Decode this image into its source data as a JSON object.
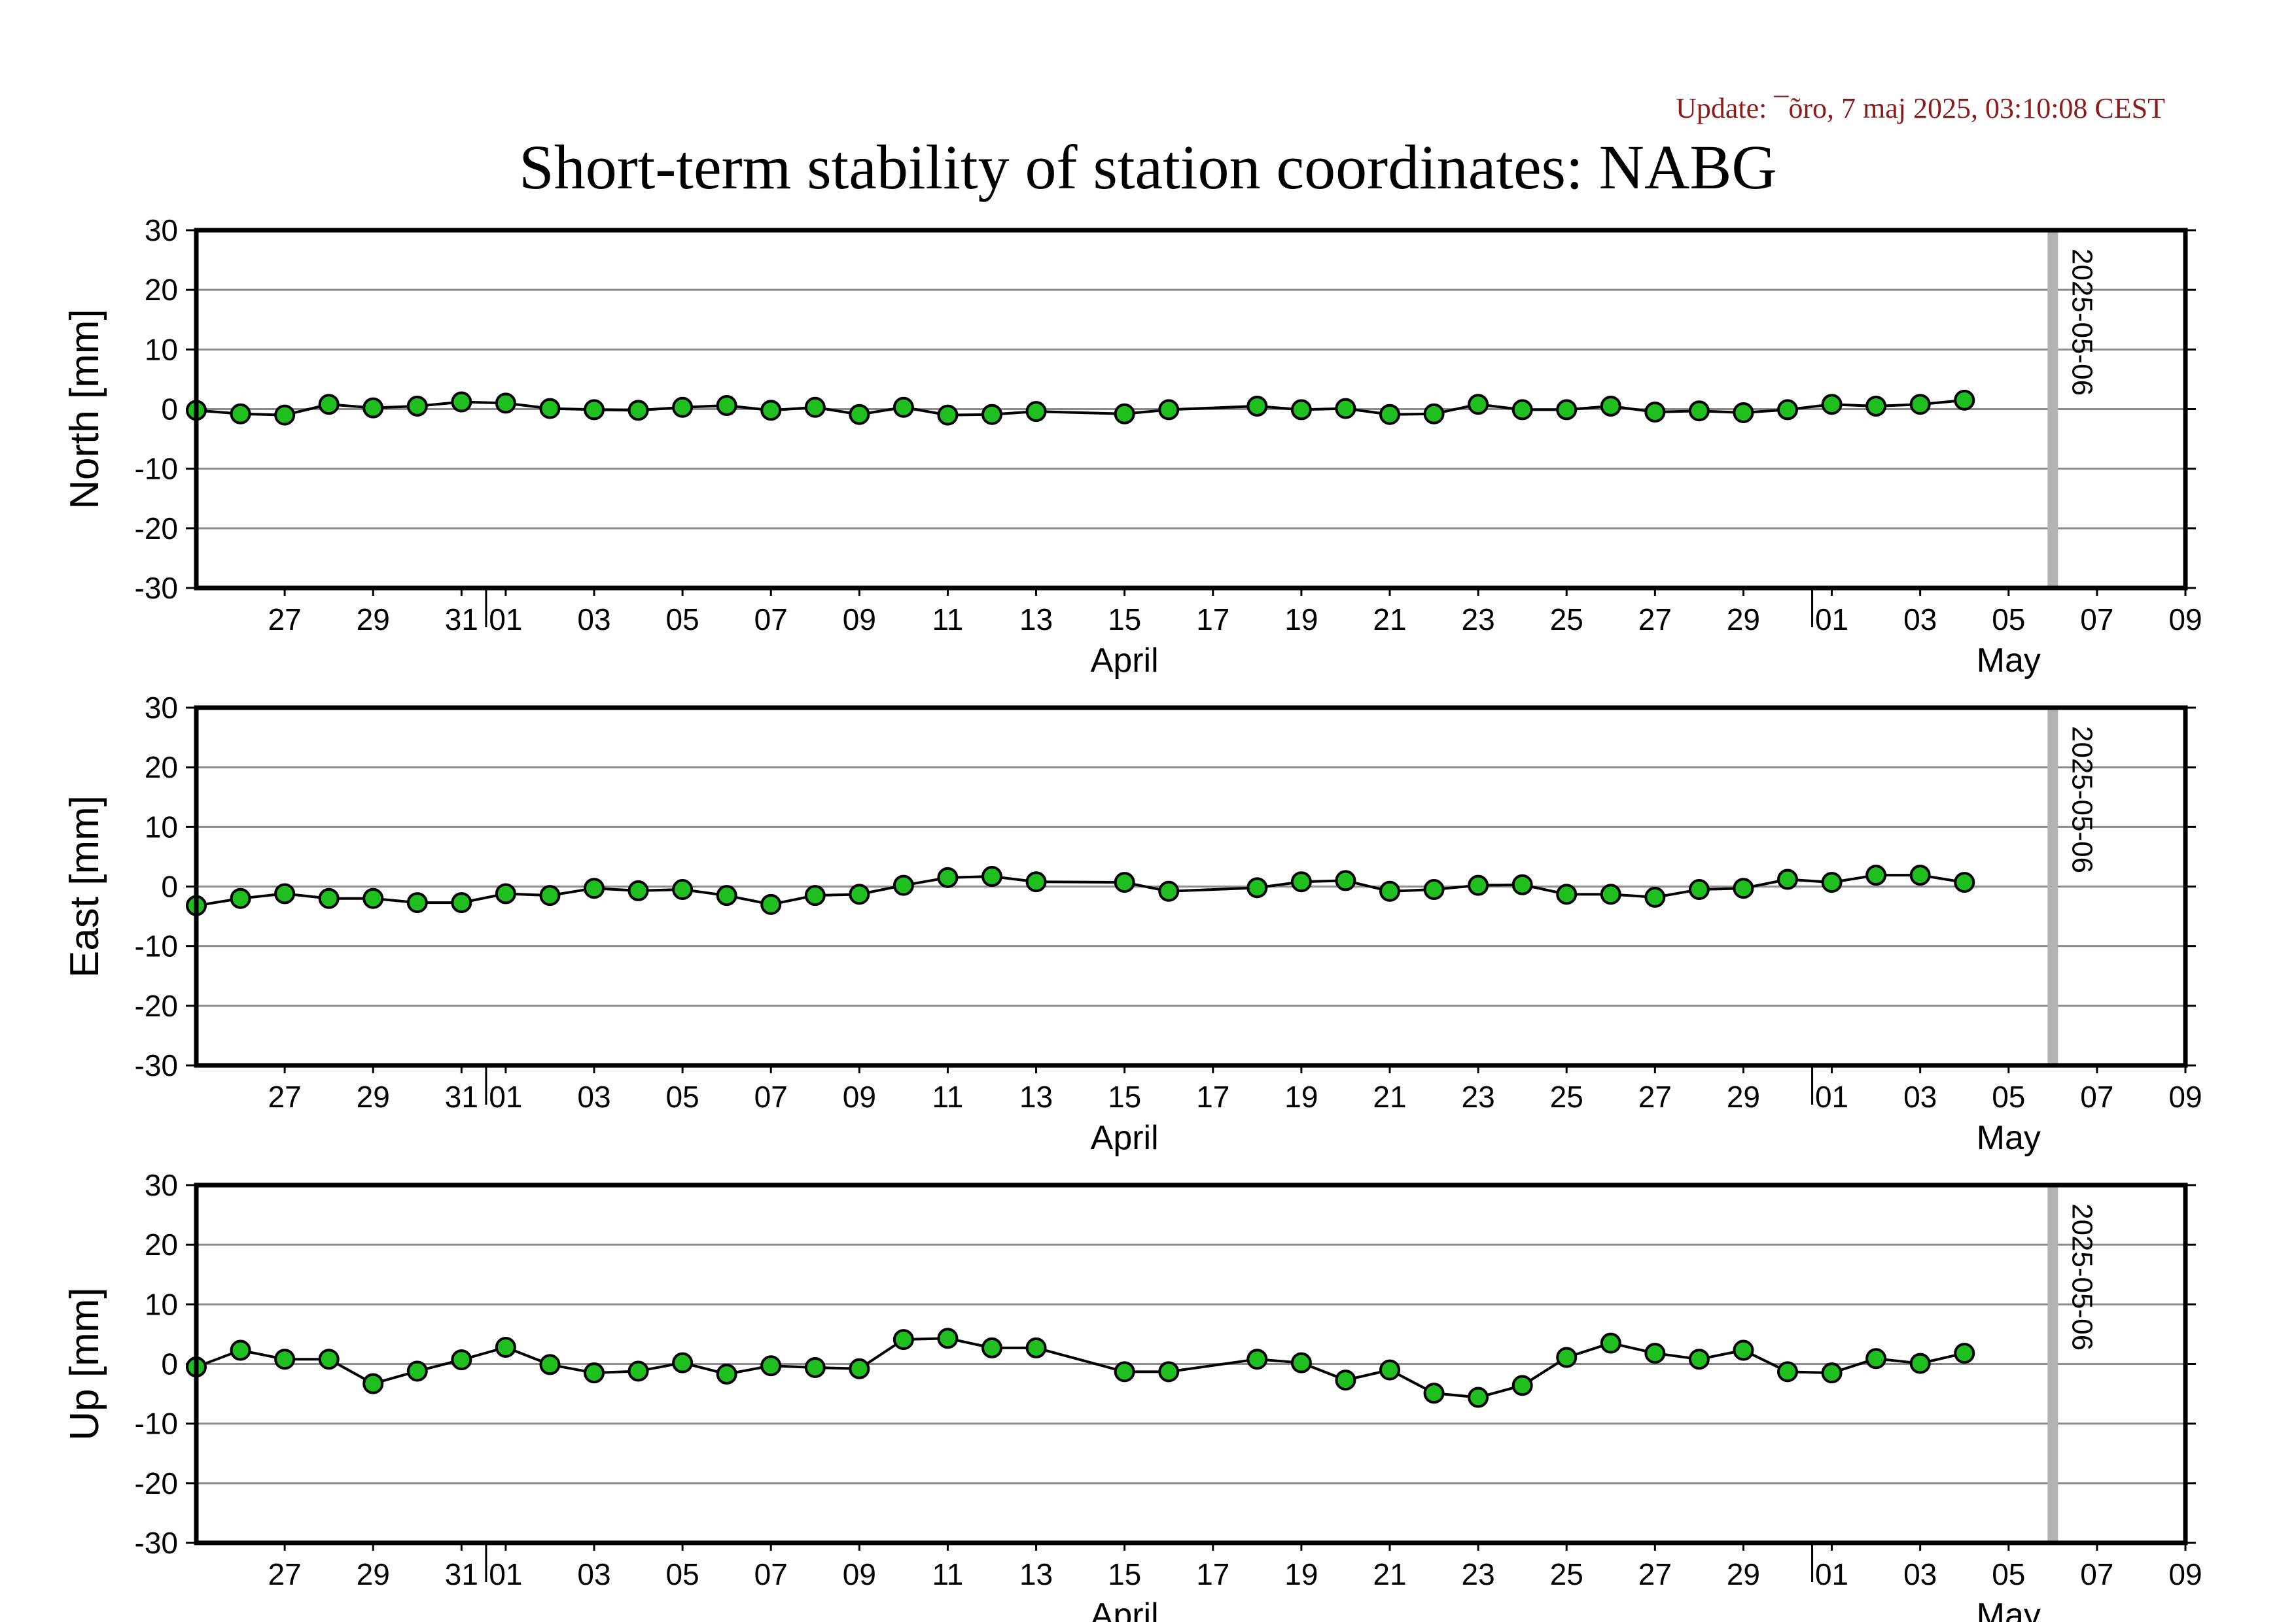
{
  "header": {
    "update": "Update: ¯õro, 7 maj 2025, 03:10:08 CEST",
    "title": "Short-term stability of station coordinates: NABG"
  },
  "colors": {
    "marker": "#1fbf1f",
    "line": "#000000",
    "grid": "#8c8c8c",
    "marker_line": "#b3b3b3",
    "title": "#000000",
    "update": "#8b1a1a"
  },
  "chart_data": [
    {
      "type": "line",
      "ylabel": "North [mm]",
      "ylim": [
        -30,
        30
      ],
      "yticks": [
        30,
        20,
        10,
        0,
        -10,
        -20,
        -30
      ],
      "xlim": [
        "2025-03-25",
        "2025-05-09"
      ],
      "x_ticks": [
        "03-27",
        "03-29",
        "03-31",
        "04-01",
        "04-03",
        "04-05",
        "04-07",
        "04-09",
        "04-11",
        "04-13",
        "04-15",
        "04-17",
        "04-19",
        "04-21",
        "04-23",
        "04-25",
        "04-27",
        "04-29",
        "05-01",
        "05-03",
        "05-05",
        "05-07",
        "05-09"
      ],
      "x_tick_labels": [
        "27",
        "29",
        "31",
        "01",
        "03",
        "05",
        "07",
        "09",
        "11",
        "13",
        "15",
        "17",
        "19",
        "21",
        "23",
        "25",
        "27",
        "29",
        "01",
        "03",
        "05",
        "07",
        "09"
      ],
      "month_labels": [
        {
          "label": "April",
          "date": "04-15"
        },
        {
          "label": "May",
          "date": "05-05"
        }
      ],
      "grid": true,
      "marker_date": "2025-05-06",
      "marker_label": "2025-05-06",
      "series": [
        {
          "x": [
            "03-25",
            "03-26",
            "03-27",
            "03-28",
            "03-29",
            "03-30",
            "03-31",
            "04-01",
            "04-02",
            "04-03",
            "04-04",
            "04-05",
            "04-06",
            "04-07",
            "04-08",
            "04-09",
            "04-10",
            "04-11",
            "04-12",
            "04-13",
            "04-15",
            "04-16",
            "04-18",
            "04-19",
            "04-20",
            "04-21",
            "04-22",
            "04-23",
            "04-24",
            "04-25",
            "04-26",
            "04-27",
            "04-28",
            "04-29",
            "04-30",
            "05-01",
            "05-02",
            "05-03",
            "05-04"
          ],
          "y": [
            -0.2,
            -0.8,
            -1.0,
            0.8,
            0.2,
            0.5,
            1.2,
            1.0,
            0.1,
            -0.1,
            -0.2,
            0.3,
            0.6,
            -0.2,
            0.3,
            -0.9,
            0.3,
            -1.0,
            -0.9,
            -0.4,
            -0.8,
            -0.1,
            0.5,
            -0.1,
            0.1,
            -0.9,
            -0.8,
            0.8,
            -0.1,
            -0.1,
            0.5,
            -0.5,
            -0.3,
            -0.6,
            -0.1,
            0.8,
            0.5,
            0.8,
            1.5
          ]
        }
      ]
    },
    {
      "type": "line",
      "ylabel": "East [mm]",
      "ylim": [
        -30,
        30
      ],
      "yticks": [
        30,
        20,
        10,
        0,
        -10,
        -20,
        -30
      ],
      "xlim": [
        "2025-03-25",
        "2025-05-09"
      ],
      "x_ticks": [
        "03-27",
        "03-29",
        "03-31",
        "04-01",
        "04-03",
        "04-05",
        "04-07",
        "04-09",
        "04-11",
        "04-13",
        "04-15",
        "04-17",
        "04-19",
        "04-21",
        "04-23",
        "04-25",
        "04-27",
        "04-29",
        "05-01",
        "05-03",
        "05-05",
        "05-07",
        "05-09"
      ],
      "x_tick_labels": [
        "27",
        "29",
        "31",
        "01",
        "03",
        "05",
        "07",
        "09",
        "11",
        "13",
        "15",
        "17",
        "19",
        "21",
        "23",
        "25",
        "27",
        "29",
        "01",
        "03",
        "05",
        "07",
        "09"
      ],
      "month_labels": [
        {
          "label": "April",
          "date": "04-15"
        },
        {
          "label": "May",
          "date": "05-05"
        }
      ],
      "grid": true,
      "marker_date": "2025-05-06",
      "marker_label": "2025-05-06",
      "series": [
        {
          "x": [
            "03-25",
            "03-26",
            "03-27",
            "03-28",
            "03-29",
            "03-30",
            "03-31",
            "04-01",
            "04-02",
            "04-03",
            "04-04",
            "04-05",
            "04-06",
            "04-07",
            "04-08",
            "04-09",
            "04-10",
            "04-11",
            "04-12",
            "04-13",
            "04-15",
            "04-16",
            "04-18",
            "04-19",
            "04-20",
            "04-21",
            "04-22",
            "04-23",
            "04-24",
            "04-25",
            "04-26",
            "04-27",
            "04-28",
            "04-29",
            "04-30",
            "05-01",
            "05-02",
            "05-03",
            "05-04"
          ],
          "y": [
            -3.2,
            -2.0,
            -1.2,
            -2.0,
            -2.0,
            -2.7,
            -2.7,
            -1.2,
            -1.5,
            -0.3,
            -0.7,
            -0.5,
            -1.5,
            -3.0,
            -1.5,
            -1.3,
            0.2,
            1.5,
            1.7,
            0.8,
            0.7,
            -0.8,
            -0.2,
            0.8,
            1.0,
            -0.8,
            -0.5,
            0.2,
            0.3,
            -1.3,
            -1.3,
            -1.8,
            -0.5,
            -0.3,
            1.2,
            0.7,
            1.9,
            1.9,
            0.7
          ]
        }
      ]
    },
    {
      "type": "line",
      "ylabel": "Up [mm]",
      "ylim": [
        -30,
        30
      ],
      "yticks": [
        30,
        20,
        10,
        0,
        -10,
        -20,
        -30
      ],
      "xlim": [
        "2025-03-25",
        "2025-05-09"
      ],
      "x_ticks": [
        "03-27",
        "03-29",
        "03-31",
        "04-01",
        "04-03",
        "04-05",
        "04-07",
        "04-09",
        "04-11",
        "04-13",
        "04-15",
        "04-17",
        "04-19",
        "04-21",
        "04-23",
        "04-25",
        "04-27",
        "04-29",
        "05-01",
        "05-03",
        "05-05",
        "05-07",
        "05-09"
      ],
      "x_tick_labels": [
        "27",
        "29",
        "31",
        "01",
        "03",
        "05",
        "07",
        "09",
        "11",
        "13",
        "15",
        "17",
        "19",
        "21",
        "23",
        "25",
        "27",
        "29",
        "01",
        "03",
        "05",
        "07",
        "09"
      ],
      "month_labels": [
        {
          "label": "April",
          "date": "04-15"
        },
        {
          "label": "May",
          "date": "05-05"
        }
      ],
      "grid": true,
      "marker_date": "2025-05-06",
      "marker_label": "2025-05-06",
      "series": [
        {
          "x": [
            "03-25",
            "03-26",
            "03-27",
            "03-28",
            "03-29",
            "03-30",
            "03-31",
            "04-01",
            "04-02",
            "04-03",
            "04-04",
            "04-05",
            "04-06",
            "04-07",
            "04-08",
            "04-09",
            "04-10",
            "04-11",
            "04-12",
            "04-13",
            "04-15",
            "04-16",
            "04-18",
            "04-19",
            "04-20",
            "04-21",
            "04-22",
            "04-23",
            "04-24",
            "04-25",
            "04-26",
            "04-27",
            "04-28",
            "04-29",
            "04-30",
            "05-01",
            "05-02",
            "05-03",
            "05-04"
          ],
          "y": [
            -0.5,
            2.3,
            0.8,
            0.8,
            -3.3,
            -1.2,
            0.7,
            2.8,
            -0.1,
            -1.5,
            -1.2,
            0.2,
            -1.7,
            -0.3,
            -0.6,
            -0.8,
            4.1,
            4.3,
            2.7,
            2.7,
            -1.3,
            -1.3,
            0.8,
            0.2,
            -2.7,
            -1.0,
            -4.9,
            -5.6,
            -3.6,
            1.1,
            3.5,
            1.8,
            0.8,
            2.3,
            -1.3,
            -1.5,
            0.9,
            0.1,
            1.8
          ]
        }
      ]
    }
  ]
}
